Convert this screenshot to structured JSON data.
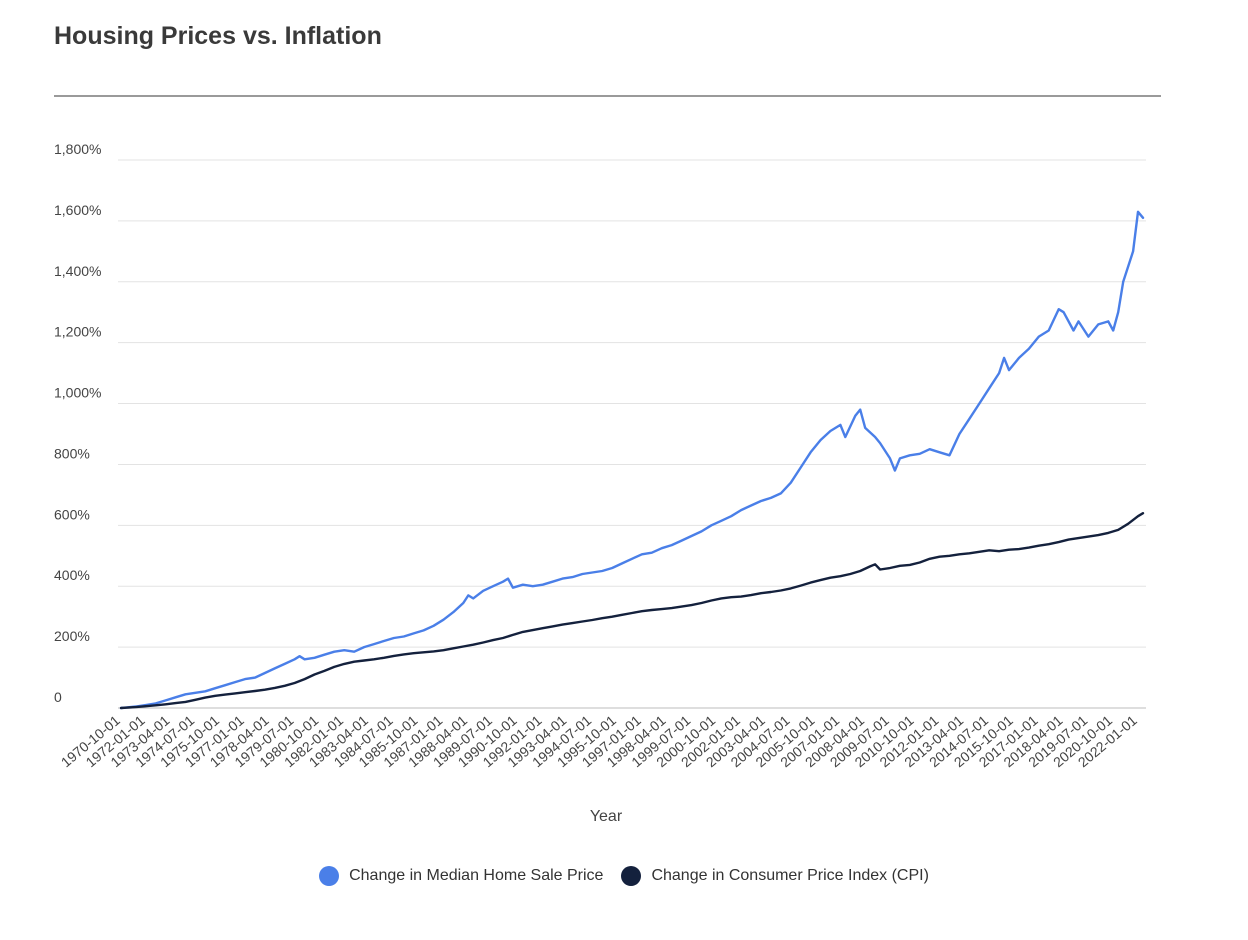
{
  "chart_data": {
    "type": "line",
    "title": "Housing Prices vs. Inflation",
    "xlabel": "Year",
    "ylabel": "",
    "ylim": [
      0,
      1800
    ],
    "yticks": [
      {
        "value": 0,
        "label": "0"
      },
      {
        "value": 200,
        "label": "200%"
      },
      {
        "value": 400,
        "label": "400%"
      },
      {
        "value": 600,
        "label": "600%"
      },
      {
        "value": 800,
        "label": "800%"
      },
      {
        "value": 1000,
        "label": "1,000%"
      },
      {
        "value": 1200,
        "label": "1,200%"
      },
      {
        "value": 1400,
        "label": "1,400%"
      },
      {
        "value": 1600,
        "label": "1,600%"
      },
      {
        "value": 1800,
        "label": "1,800%"
      }
    ],
    "xrange": [
      1970.75,
      2022.25
    ],
    "xticks": [
      {
        "value": 1970.75,
        "label": "1970-10-01"
      },
      {
        "value": 1972.0,
        "label": "1972-01-01"
      },
      {
        "value": 1973.25,
        "label": "1973-04-01"
      },
      {
        "value": 1974.5,
        "label": "1974-07-01"
      },
      {
        "value": 1975.75,
        "label": "1975-10-01"
      },
      {
        "value": 1977.0,
        "label": "1977-01-01"
      },
      {
        "value": 1978.25,
        "label": "1978-04-01"
      },
      {
        "value": 1979.5,
        "label": "1979-07-01"
      },
      {
        "value": 1980.75,
        "label": "1980-10-01"
      },
      {
        "value": 1982.0,
        "label": "1982-01-01"
      },
      {
        "value": 1983.25,
        "label": "1983-04-01"
      },
      {
        "value": 1984.5,
        "label": "1984-07-01"
      },
      {
        "value": 1985.75,
        "label": "1985-10-01"
      },
      {
        "value": 1987.0,
        "label": "1987-01-01"
      },
      {
        "value": 1988.25,
        "label": "1988-04-01"
      },
      {
        "value": 1989.5,
        "label": "1989-07-01"
      },
      {
        "value": 1990.75,
        "label": "1990-10-01"
      },
      {
        "value": 1992.0,
        "label": "1992-01-01"
      },
      {
        "value": 1993.25,
        "label": "1993-04-01"
      },
      {
        "value": 1994.5,
        "label": "1994-07-01"
      },
      {
        "value": 1995.75,
        "label": "1995-10-01"
      },
      {
        "value": 1997.0,
        "label": "1997-01-01"
      },
      {
        "value": 1998.25,
        "label": "1998-04-01"
      },
      {
        "value": 1999.5,
        "label": "1999-07-01"
      },
      {
        "value": 2000.75,
        "label": "2000-10-01"
      },
      {
        "value": 2002.0,
        "label": "2002-01-01"
      },
      {
        "value": 2003.25,
        "label": "2003-04-01"
      },
      {
        "value": 2004.5,
        "label": "2004-07-01"
      },
      {
        "value": 2005.75,
        "label": "2005-10-01"
      },
      {
        "value": 2007.0,
        "label": "2007-01-01"
      },
      {
        "value": 2008.25,
        "label": "2008-04-01"
      },
      {
        "value": 2009.5,
        "label": "2009-07-01"
      },
      {
        "value": 2010.75,
        "label": "2010-10-01"
      },
      {
        "value": 2012.0,
        "label": "2012-01-01"
      },
      {
        "value": 2013.25,
        "label": "2013-04-01"
      },
      {
        "value": 2014.5,
        "label": "2014-07-01"
      },
      {
        "value": 2015.75,
        "label": "2015-10-01"
      },
      {
        "value": 2017.0,
        "label": "2017-01-01"
      },
      {
        "value": 2018.25,
        "label": "2018-04-01"
      },
      {
        "value": 2019.5,
        "label": "2019-07-01"
      },
      {
        "value": 2020.75,
        "label": "2020-10-01"
      },
      {
        "value": 2022.0,
        "label": "2022-01-01"
      }
    ],
    "grid": true,
    "legend_position": "bottom",
    "series": [
      {
        "name": "Change in Median Home Sale Price",
        "color": "#4a7fe8",
        "points": [
          [
            1970.75,
            0
          ],
          [
            1971.5,
            5
          ],
          [
            1972.0,
            10
          ],
          [
            1972.5,
            15
          ],
          [
            1973.0,
            25
          ],
          [
            1973.5,
            35
          ],
          [
            1974.0,
            45
          ],
          [
            1974.5,
            50
          ],
          [
            1975.0,
            55
          ],
          [
            1975.5,
            65
          ],
          [
            1976.0,
            75
          ],
          [
            1976.5,
            85
          ],
          [
            1977.0,
            95
          ],
          [
            1977.5,
            100
          ],
          [
            1978.0,
            115
          ],
          [
            1978.5,
            130
          ],
          [
            1979.0,
            145
          ],
          [
            1979.5,
            160
          ],
          [
            1979.75,
            170
          ],
          [
            1980.0,
            160
          ],
          [
            1980.5,
            165
          ],
          [
            1981.0,
            175
          ],
          [
            1981.5,
            185
          ],
          [
            1982.0,
            190
          ],
          [
            1982.5,
            185
          ],
          [
            1983.0,
            200
          ],
          [
            1983.5,
            210
          ],
          [
            1984.0,
            220
          ],
          [
            1984.5,
            230
          ],
          [
            1985.0,
            235
          ],
          [
            1985.5,
            245
          ],
          [
            1986.0,
            255
          ],
          [
            1986.5,
            270
          ],
          [
            1987.0,
            290
          ],
          [
            1987.5,
            315
          ],
          [
            1988.0,
            345
          ],
          [
            1988.25,
            370
          ],
          [
            1988.5,
            360
          ],
          [
            1989.0,
            385
          ],
          [
            1989.5,
            400
          ],
          [
            1990.0,
            415
          ],
          [
            1990.25,
            425
          ],
          [
            1990.5,
            395
          ],
          [
            1991.0,
            405
          ],
          [
            1991.5,
            400
          ],
          [
            1992.0,
            405
          ],
          [
            1992.5,
            415
          ],
          [
            1993.0,
            425
          ],
          [
            1993.5,
            430
          ],
          [
            1994.0,
            440
          ],
          [
            1994.5,
            445
          ],
          [
            1995.0,
            450
          ],
          [
            1995.5,
            460
          ],
          [
            1996.0,
            475
          ],
          [
            1996.5,
            490
          ],
          [
            1997.0,
            505
          ],
          [
            1997.5,
            510
          ],
          [
            1998.0,
            525
          ],
          [
            1998.5,
            535
          ],
          [
            1999.0,
            550
          ],
          [
            1999.5,
            565
          ],
          [
            2000.0,
            580
          ],
          [
            2000.5,
            600
          ],
          [
            2001.0,
            615
          ],
          [
            2001.5,
            630
          ],
          [
            2002.0,
            650
          ],
          [
            2002.5,
            665
          ],
          [
            2003.0,
            680
          ],
          [
            2003.5,
            690
          ],
          [
            2004.0,
            705
          ],
          [
            2004.5,
            740
          ],
          [
            2005.0,
            790
          ],
          [
            2005.5,
            840
          ],
          [
            2006.0,
            880
          ],
          [
            2006.5,
            910
          ],
          [
            2007.0,
            930
          ],
          [
            2007.25,
            890
          ],
          [
            2007.75,
            960
          ],
          [
            2008.0,
            980
          ],
          [
            2008.25,
            920
          ],
          [
            2008.75,
            890
          ],
          [
            2009.0,
            870
          ],
          [
            2009.5,
            820
          ],
          [
            2009.75,
            780
          ],
          [
            2010.0,
            820
          ],
          [
            2010.5,
            830
          ],
          [
            2011.0,
            835
          ],
          [
            2011.5,
            850
          ],
          [
            2012.0,
            840
          ],
          [
            2012.5,
            830
          ],
          [
            2013.0,
            900
          ],
          [
            2013.5,
            950
          ],
          [
            2014.0,
            1000
          ],
          [
            2014.5,
            1050
          ],
          [
            2015.0,
            1100
          ],
          [
            2015.25,
            1150
          ],
          [
            2015.5,
            1110
          ],
          [
            2016.0,
            1150
          ],
          [
            2016.5,
            1180
          ],
          [
            2017.0,
            1220
          ],
          [
            2017.5,
            1240
          ],
          [
            2018.0,
            1310
          ],
          [
            2018.25,
            1300
          ],
          [
            2018.75,
            1240
          ],
          [
            2019.0,
            1270
          ],
          [
            2019.5,
            1220
          ],
          [
            2020.0,
            1260
          ],
          [
            2020.5,
            1270
          ],
          [
            2020.75,
            1240
          ],
          [
            2021.0,
            1300
          ],
          [
            2021.25,
            1400
          ],
          [
            2021.75,
            1500
          ],
          [
            2022.0,
            1630
          ],
          [
            2022.25,
            1610
          ]
        ]
      },
      {
        "name": "Change in Consumer Price Index (CPI)",
        "color": "#14213d",
        "points": [
          [
            1970.75,
            0
          ],
          [
            1971.5,
            3
          ],
          [
            1972.0,
            6
          ],
          [
            1972.5,
            9
          ],
          [
            1973.0,
            12
          ],
          [
            1973.5,
            16
          ],
          [
            1974.0,
            20
          ],
          [
            1974.5,
            27
          ],
          [
            1975.0,
            34
          ],
          [
            1975.5,
            40
          ],
          [
            1976.0,
            44
          ],
          [
            1976.5,
            48
          ],
          [
            1977.0,
            52
          ],
          [
            1977.5,
            56
          ],
          [
            1978.0,
            60
          ],
          [
            1978.5,
            66
          ],
          [
            1979.0,
            73
          ],
          [
            1979.5,
            82
          ],
          [
            1980.0,
            95
          ],
          [
            1980.5,
            110
          ],
          [
            1981.0,
            122
          ],
          [
            1981.5,
            135
          ],
          [
            1982.0,
            145
          ],
          [
            1982.5,
            152
          ],
          [
            1983.0,
            156
          ],
          [
            1983.5,
            160
          ],
          [
            1984.0,
            165
          ],
          [
            1984.5,
            171
          ],
          [
            1985.0,
            176
          ],
          [
            1985.5,
            180
          ],
          [
            1986.0,
            183
          ],
          [
            1986.5,
            186
          ],
          [
            1987.0,
            190
          ],
          [
            1987.5,
            196
          ],
          [
            1988.0,
            202
          ],
          [
            1988.5,
            208
          ],
          [
            1989.0,
            215
          ],
          [
            1989.5,
            223
          ],
          [
            1990.0,
            230
          ],
          [
            1990.5,
            240
          ],
          [
            1991.0,
            250
          ],
          [
            1991.5,
            256
          ],
          [
            1992.0,
            262
          ],
          [
            1992.5,
            268
          ],
          [
            1993.0,
            274
          ],
          [
            1993.5,
            279
          ],
          [
            1994.0,
            284
          ],
          [
            1994.5,
            289
          ],
          [
            1995.0,
            295
          ],
          [
            1995.5,
            300
          ],
          [
            1996.0,
            306
          ],
          [
            1996.5,
            312
          ],
          [
            1997.0,
            318
          ],
          [
            1997.5,
            322
          ],
          [
            1998.0,
            325
          ],
          [
            1998.5,
            328
          ],
          [
            1999.0,
            333
          ],
          [
            1999.5,
            338
          ],
          [
            2000.0,
            345
          ],
          [
            2000.5,
            353
          ],
          [
            2001.0,
            360
          ],
          [
            2001.5,
            364
          ],
          [
            2002.0,
            366
          ],
          [
            2002.5,
            371
          ],
          [
            2003.0,
            377
          ],
          [
            2003.5,
            381
          ],
          [
            2004.0,
            386
          ],
          [
            2004.5,
            393
          ],
          [
            2005.0,
            402
          ],
          [
            2005.5,
            412
          ],
          [
            2006.0,
            420
          ],
          [
            2006.5,
            428
          ],
          [
            2007.0,
            433
          ],
          [
            2007.5,
            440
          ],
          [
            2008.0,
            450
          ],
          [
            2008.5,
            465
          ],
          [
            2008.75,
            472
          ],
          [
            2009.0,
            455
          ],
          [
            2009.5,
            460
          ],
          [
            2010.0,
            467
          ],
          [
            2010.5,
            470
          ],
          [
            2011.0,
            478
          ],
          [
            2011.5,
            490
          ],
          [
            2012.0,
            497
          ],
          [
            2012.5,
            500
          ],
          [
            2013.0,
            505
          ],
          [
            2013.5,
            508
          ],
          [
            2014.0,
            513
          ],
          [
            2014.5,
            518
          ],
          [
            2015.0,
            515
          ],
          [
            2015.5,
            520
          ],
          [
            2016.0,
            522
          ],
          [
            2016.5,
            527
          ],
          [
            2017.0,
            533
          ],
          [
            2017.5,
            538
          ],
          [
            2018.0,
            545
          ],
          [
            2018.5,
            553
          ],
          [
            2019.0,
            558
          ],
          [
            2019.5,
            563
          ],
          [
            2020.0,
            568
          ],
          [
            2020.5,
            575
          ],
          [
            2021.0,
            585
          ],
          [
            2021.5,
            605
          ],
          [
            2022.0,
            630
          ],
          [
            2022.25,
            640
          ]
        ]
      }
    ]
  }
}
